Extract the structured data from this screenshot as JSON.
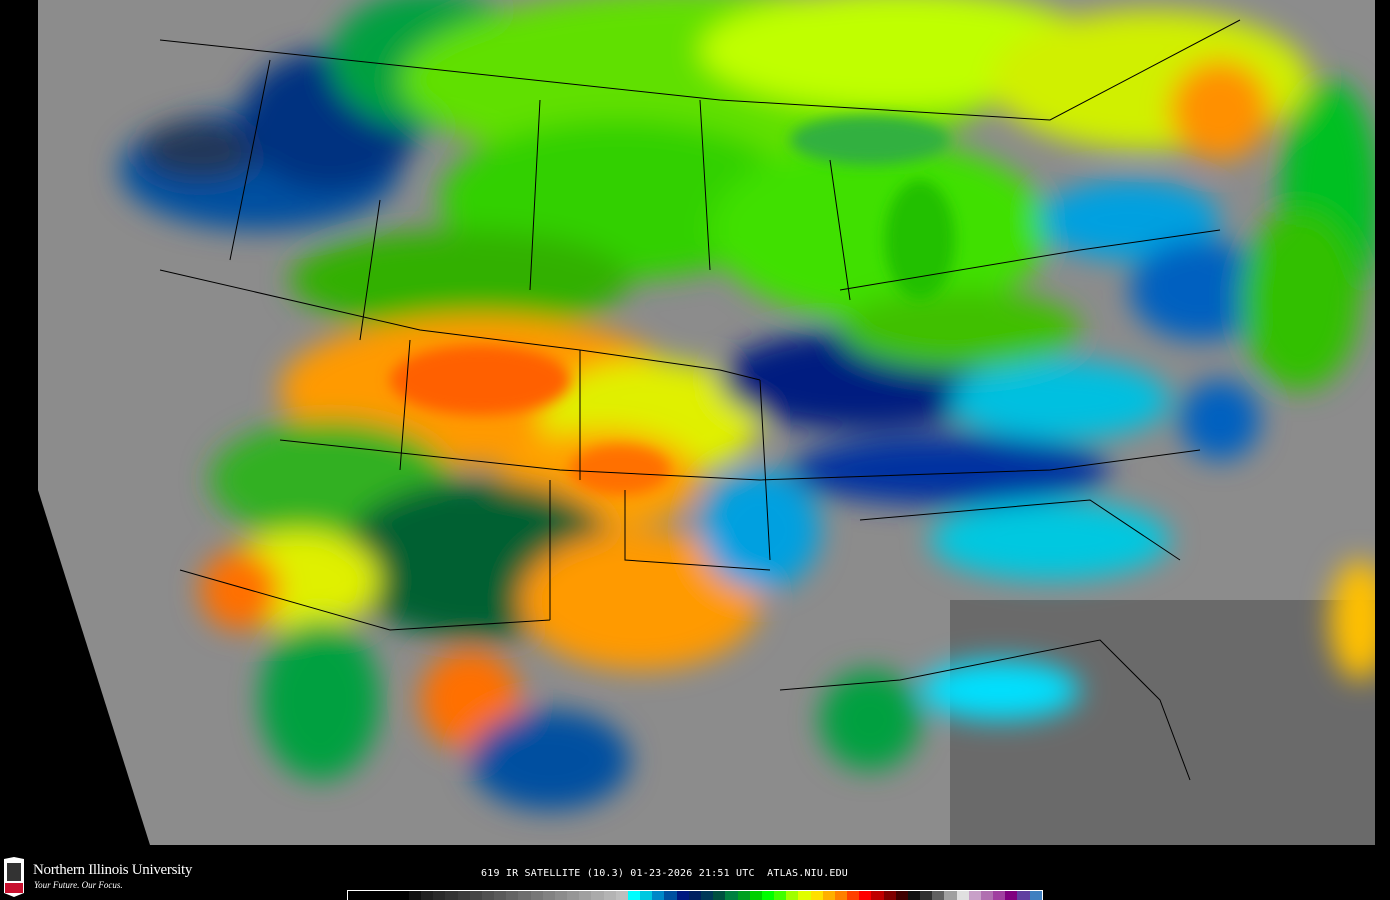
{
  "map": {
    "type": "satellite-ir",
    "region": "contiguous United States",
    "colors": {
      "clear_land": "#8a8a8a",
      "ocean": "#6a6a6a",
      "cold_low": "#00c8ff",
      "cold_mid": "#00209a",
      "green": "#00d000",
      "yellow": "#e8ff00",
      "orange": "#ff9a00",
      "red": "#ff3000",
      "border_lines": "#000000"
    }
  },
  "footer": {
    "logo_text": "NIU",
    "university": "Northern Illinois University",
    "tagline": "Your Future. Our Focus.",
    "caption": "619 IR SATELLITE (10.3) 01-23-2026 21:51 UTC  ATLAS.NIU.EDU"
  },
  "colorbar": {
    "colors": [
      "#000000",
      "#000000",
      "#000000",
      "#000000",
      "#000000",
      "#101010",
      "#202020",
      "#2a2a2a",
      "#333333",
      "#3c3c3c",
      "#464646",
      "#505050",
      "#5a5a5a",
      "#646464",
      "#6e6e6e",
      "#787878",
      "#828282",
      "#8c8c8c",
      "#969696",
      "#a0a0a0",
      "#aaaaaa",
      "#b4b4b4",
      "#bebebe",
      "#00ffff",
      "#00c8e0",
      "#0088c8",
      "#0050a0",
      "#001880",
      "#002060",
      "#003858",
      "#005040",
      "#008040",
      "#00a020",
      "#00d000",
      "#00ff00",
      "#40ff00",
      "#a0ff00",
      "#e0ff00",
      "#ffe000",
      "#ffb000",
      "#ff8000",
      "#ff4000",
      "#ff0000",
      "#c00000",
      "#800000",
      "#400000",
      "#101010",
      "#303030",
      "#606060",
      "#a0a0a0",
      "#e0e0e0",
      "#c8a0c8",
      "#b070b0",
      "#a040a0",
      "#800080",
      "#6040a0",
      "#4080c0"
    ]
  }
}
